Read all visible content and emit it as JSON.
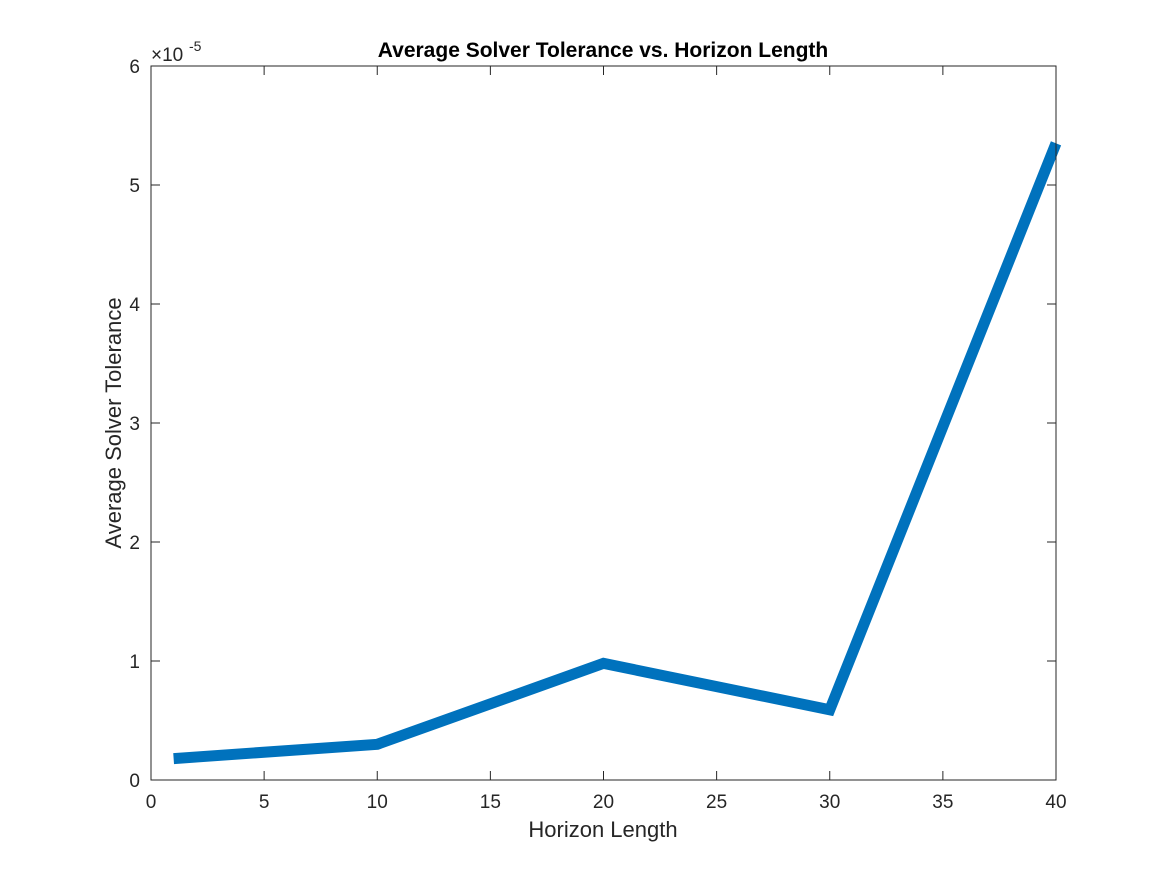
{
  "chart_data": {
    "type": "line",
    "title": "Average Solver Tolerance vs. Horizon Length",
    "xlabel": "Horizon Length",
    "ylabel": "Average Solver Tolerance",
    "y_multiplier": {
      "base": "×10",
      "exponent": "-5"
    },
    "xlim": [
      0,
      40
    ],
    "ylim": [
      0,
      6
    ],
    "xticks": [
      0,
      5,
      10,
      15,
      20,
      25,
      30,
      35,
      40
    ],
    "yticks": [
      0,
      1,
      2,
      3,
      4,
      5,
      6
    ],
    "grid": false,
    "legend": "none",
    "series": [
      {
        "color": "#0072BD",
        "x": [
          1,
          10,
          20,
          30,
          40
        ],
        "y": [
          0.18,
          0.3,
          0.98,
          0.59,
          5.35
        ]
      }
    ]
  }
}
